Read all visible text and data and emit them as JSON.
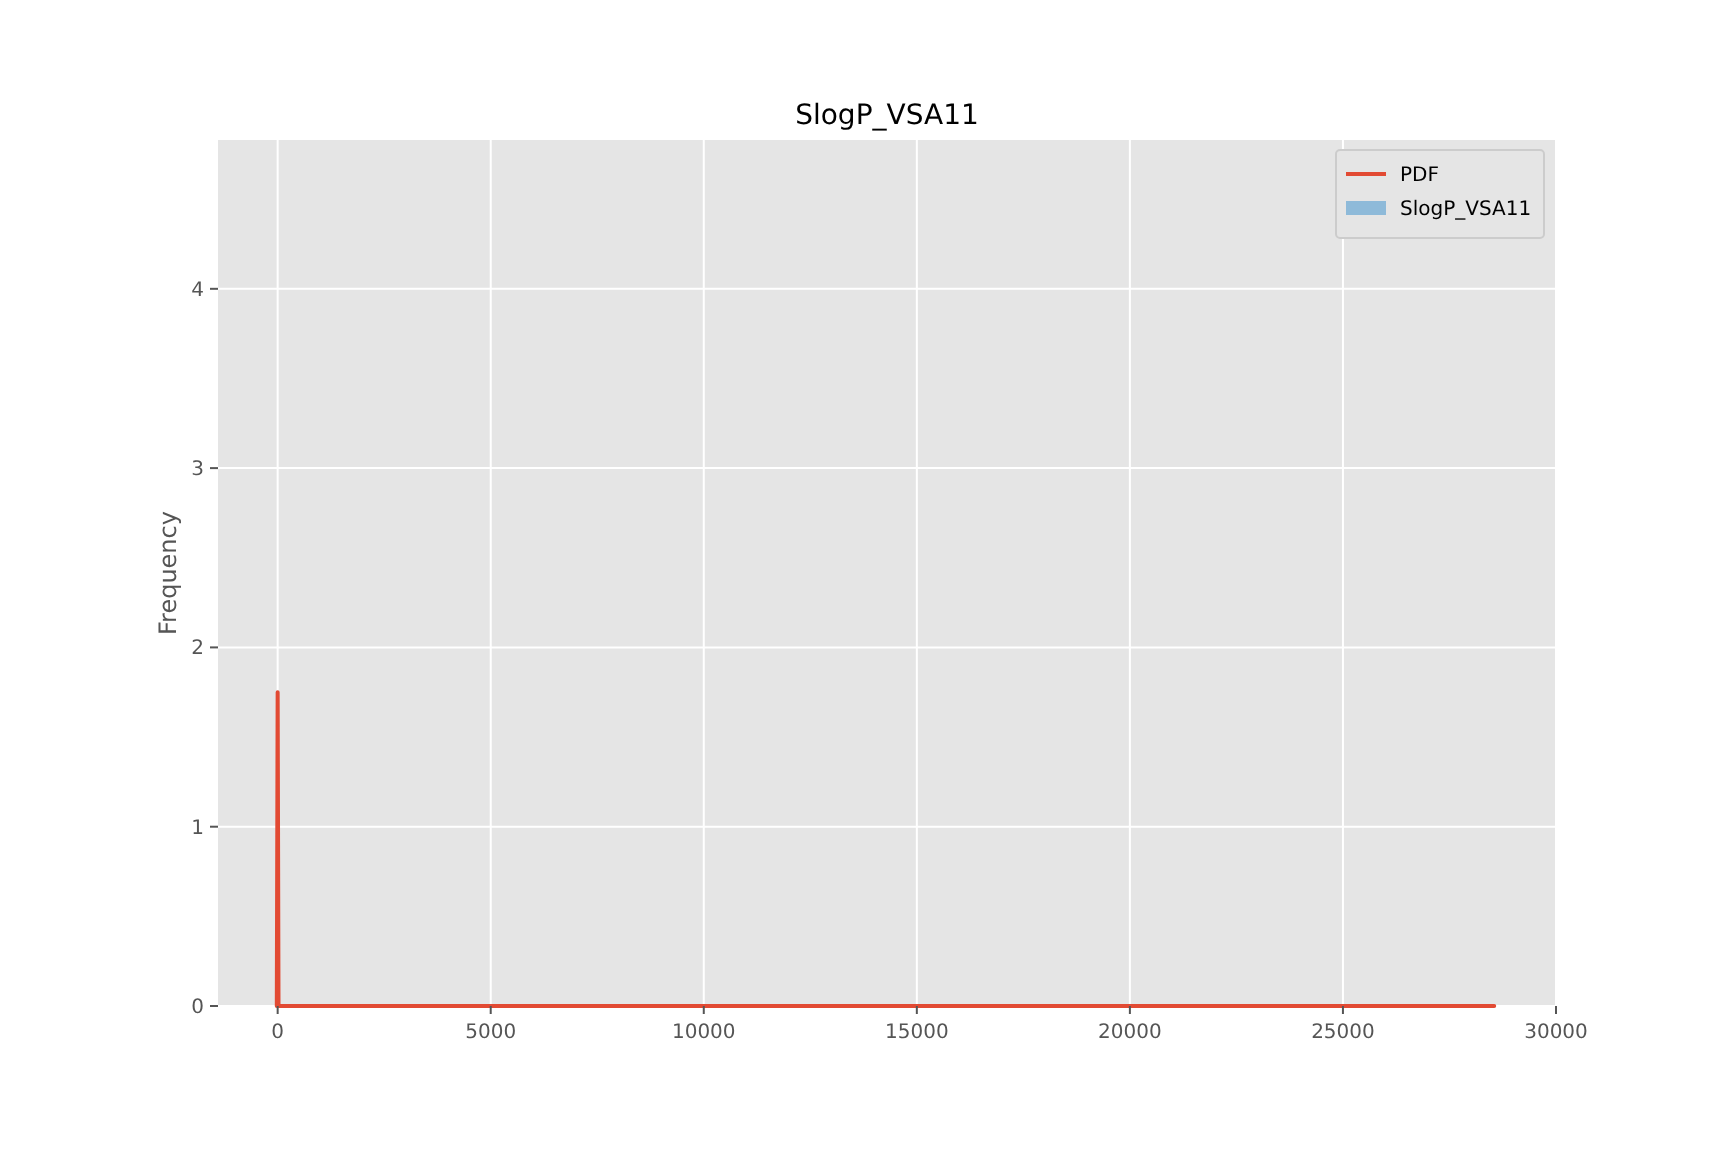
{
  "chart_data": {
    "type": "line",
    "title": "SlogP_VSA11",
    "ylabel": "Frequency",
    "series": [
      {
        "name": "PDF",
        "color": "#e24a33",
        "x": [
          -20,
          0,
          20,
          28550
        ],
        "values": [
          0,
          1.75,
          0,
          0
        ]
      },
      {
        "name": "SlogP_VSA11",
        "type": "histogram",
        "color": "#8ebad9"
      }
    ],
    "xlim": [
      -1400,
      30000
    ],
    "xticks": [
      0,
      5000,
      10000,
      15000,
      20000,
      25000,
      30000
    ],
    "ylim": [
      0,
      4.83
    ],
    "yticks": [
      0,
      1,
      2,
      3,
      4
    ],
    "grid": true,
    "legend": "top right"
  }
}
